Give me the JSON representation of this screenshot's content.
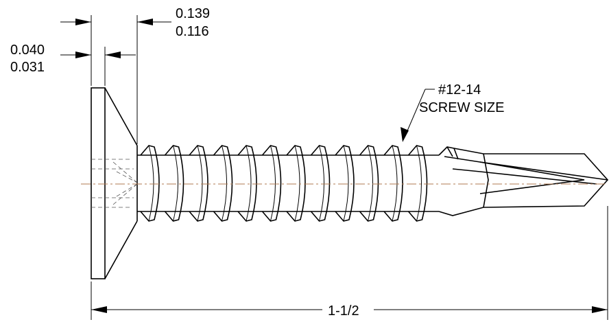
{
  "labels": {
    "head_thickness_max": "0.040",
    "head_thickness_min": "0.031",
    "head_height_max": "0.139",
    "head_height_min": "0.116",
    "screw_size_line1": "#12-14",
    "screw_size_line2": "SCREW SIZE",
    "length": "1-1/2"
  },
  "colors": {
    "centerline": "#b07a50",
    "linework": "#000000"
  }
}
